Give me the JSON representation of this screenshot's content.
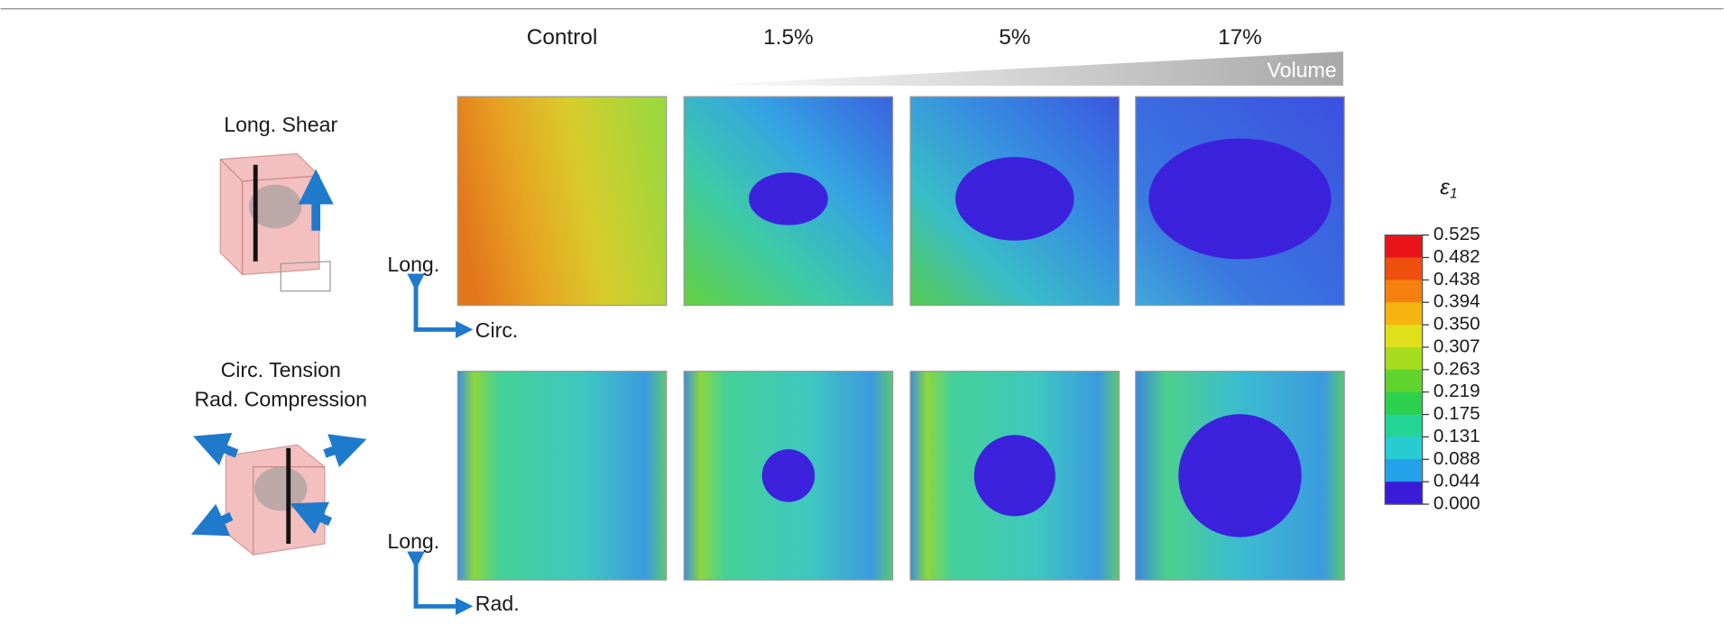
{
  "header": {
    "columns": [
      "Control",
      "1.5%",
      "5%",
      "17%"
    ],
    "gradient_label": "Volume"
  },
  "rows": [
    {
      "label_lines": [
        "Long. Shear"
      ],
      "axes": {
        "vertical": "Long.",
        "horizontal": "Circ."
      }
    },
    {
      "label_lines": [
        "Circ. Tension",
        "Rad. Compression"
      ],
      "axes": {
        "vertical": "Long.",
        "horizontal": "Rad."
      }
    }
  ],
  "colorbar": {
    "symbol": "ε",
    "subscript": "1",
    "ticks": [
      "0.525",
      "0.482",
      "0.438",
      "0.394",
      "0.350",
      "0.307",
      "0.263",
      "0.219",
      "0.175",
      "0.131",
      "0.088",
      "0.044",
      "0.000"
    ]
  }
}
